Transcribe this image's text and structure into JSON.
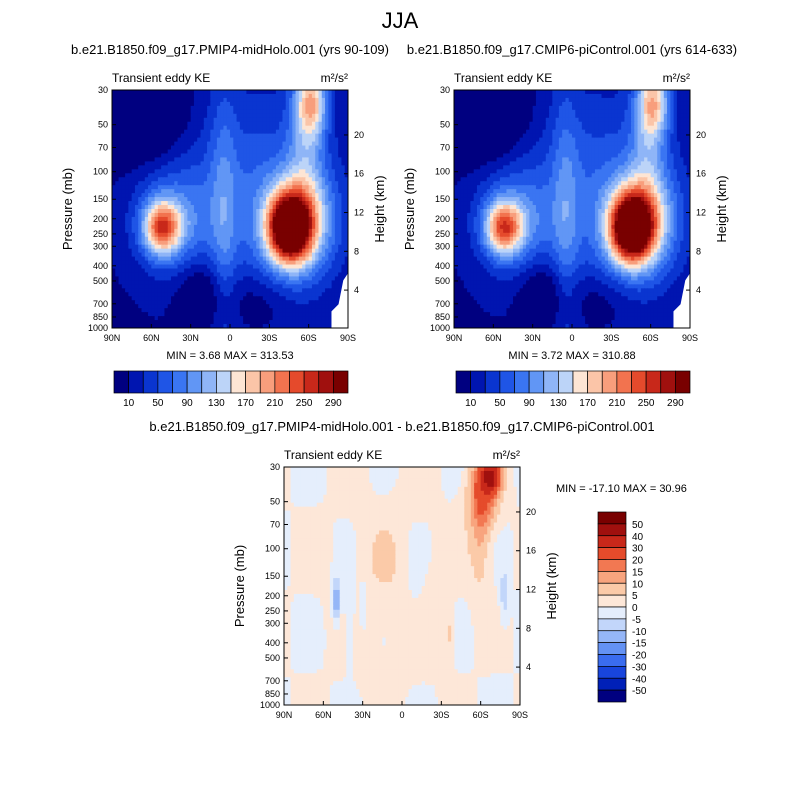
{
  "main_title": "JJA",
  "chart_data": [
    {
      "type": "heatmap",
      "title": "b.e21.B1850.f09_g17.PMIP4-midHolo.001 (yrs 90-109)",
      "left_title": "Transient eddy KE",
      "units_label": "m²/s²",
      "ylabel": "Pressure (mb)",
      "ylabel_right": "Height (km)",
      "x_ticks": [
        "90N",
        "60N",
        "30N",
        "0",
        "30S",
        "60S",
        "90S"
      ],
      "y_ticks": [
        "30",
        "50",
        "70",
        "100",
        "150",
        "200",
        "250",
        "300",
        "400",
        "500",
        "700",
        "850",
        "1000"
      ],
      "y_ticks_right": [
        "20",
        "16",
        "12",
        "8",
        "4"
      ],
      "min_max_text": "MIN =   3.68   MAX = 313.53",
      "levels": [
        10,
        30,
        50,
        70,
        90,
        110,
        130,
        150,
        170,
        190,
        210,
        230,
        250,
        270,
        290
      ],
      "level_labels": [
        "10",
        "50",
        "90",
        "130",
        "170",
        "210",
        "250",
        "290"
      ],
      "colorbar_orientation": "horizontal",
      "min": 3.68,
      "max": 313.53
    },
    {
      "type": "heatmap",
      "title": "b.e21.B1850.f09_g17.CMIP6-piControl.001 (yrs 614-633)",
      "left_title": "Transient eddy KE",
      "units_label": "m²/s²",
      "ylabel": "Pressure (mb)",
      "ylabel_right": "Height (km)",
      "x_ticks": [
        "90N",
        "60N",
        "30N",
        "0",
        "30S",
        "60S",
        "90S"
      ],
      "y_ticks": [
        "30",
        "50",
        "70",
        "100",
        "150",
        "200",
        "250",
        "300",
        "400",
        "500",
        "700",
        "850",
        "1000"
      ],
      "y_ticks_right": [
        "20",
        "16",
        "12",
        "8",
        "4"
      ],
      "min_max_text": "MIN =   3.72   MAX = 310.88",
      "levels": [
        10,
        30,
        50,
        70,
        90,
        110,
        130,
        150,
        170,
        190,
        210,
        230,
        250,
        270,
        290
      ],
      "level_labels": [
        "10",
        "50",
        "90",
        "130",
        "170",
        "210",
        "250",
        "290"
      ],
      "colorbar_orientation": "horizontal",
      "min": 3.72,
      "max": 310.88
    },
    {
      "type": "heatmap",
      "title": "b.e21.B1850.f09_g17.PMIP4-midHolo.001 - b.e21.B1850.f09_g17.CMIP6-piControl.001",
      "left_title": "Transient eddy KE",
      "units_label": "m²/s²",
      "ylabel": "Pressure (mb)",
      "ylabel_right": "Height (km)",
      "x_ticks": [
        "90N",
        "60N",
        "30N",
        "0",
        "30S",
        "60S",
        "90S"
      ],
      "y_ticks": [
        "30",
        "50",
        "70",
        "100",
        "150",
        "200",
        "250",
        "300",
        "400",
        "500",
        "700",
        "850",
        "1000"
      ],
      "y_ticks_right": [
        "20",
        "16",
        "12",
        "8",
        "4"
      ],
      "min_max_text": "MIN = -17.10   MAX =  30.96",
      "levels": [
        -50,
        -40,
        -30,
        -20,
        -15,
        -10,
        -5,
        0,
        5,
        10,
        15,
        20,
        30,
        40,
        50
      ],
      "level_labels": [
        "50",
        "40",
        "30",
        "20",
        "15",
        "10",
        "5",
        "0",
        "-5",
        "-10",
        "-15",
        "-20",
        "-30",
        "-40",
        "-50"
      ],
      "colorbar_orientation": "vertical",
      "min": -17.1,
      "max": 30.96
    }
  ],
  "colors": {
    "abs_palette": [
      "#000080",
      "#0015b0",
      "#0a35d0",
      "#1f55e6",
      "#3a75f2",
      "#6196f5",
      "#8fb5f7",
      "#bcd4f8",
      "#fde5d4",
      "#fbc5a8",
      "#f89e7c",
      "#f2734f",
      "#e54a2c",
      "#c8281a",
      "#a0100e",
      "#790000"
    ],
    "diff_palette": [
      "#000080",
      "#0020b8",
      "#1845dd",
      "#3a6cef",
      "#6492f4",
      "#95b6f7",
      "#c2d6fa",
      "#e5eefc",
      "#fde7d8",
      "#fbcaa8",
      "#f8a47e",
      "#f27852",
      "#e54b2b",
      "#c8281a",
      "#a0100e",
      "#790000"
    ]
  }
}
